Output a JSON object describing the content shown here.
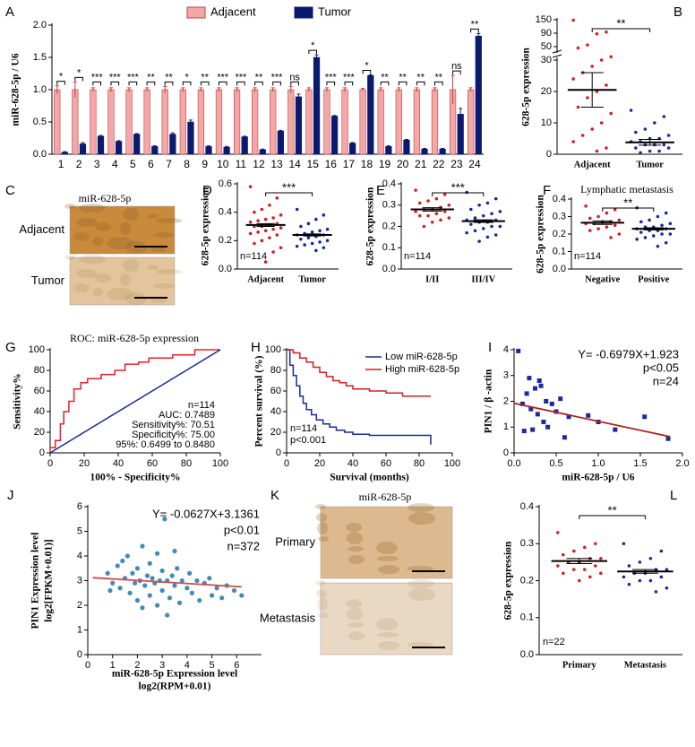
{
  "chart_data": [
    {
      "type": "bar",
      "panel": "A",
      "ylabel": "miR-628-5p / U6",
      "legend": "top",
      "categories": [
        "1",
        "2",
        "3",
        "4",
        "5",
        "6",
        "7",
        "8",
        "9",
        "10",
        "11",
        "12",
        "13",
        "14",
        "15",
        "16",
        "17",
        "18",
        "19",
        "20",
        "21",
        "22",
        "23",
        "24"
      ],
      "series": [
        {
          "name": "Adjacent",
          "color": "#f4a7a7",
          "values": [
            1,
            1,
            1,
            1,
            1,
            1,
            1,
            1,
            1,
            1,
            1,
            1,
            1,
            1,
            1,
            1,
            1,
            1,
            1,
            1,
            1,
            1,
            1,
            1
          ],
          "errors": [
            0.06,
            0.12,
            0.03,
            0.03,
            0.03,
            0.03,
            0.05,
            0.03,
            0.03,
            0.03,
            0.03,
            0.03,
            0.03,
            0.05,
            0.03,
            0.03,
            0.03,
            0.02,
            0.03,
            0.03,
            0.03,
            0.03,
            0.22,
            0.03
          ]
        },
        {
          "name": "Tumor",
          "color": "#0b1a6e",
          "values": [
            0.03,
            0.16,
            0.28,
            0.2,
            0.31,
            0.12,
            0.31,
            0.5,
            0.12,
            0.11,
            0.27,
            0.07,
            0.36,
            0.89,
            1.5,
            0.59,
            0.17,
            1.22,
            0.12,
            0.22,
            0.08,
            0.08,
            0.62,
            1.83
          ],
          "errors": [
            0.01,
            0.02,
            0.01,
            0.01,
            0.01,
            0.01,
            0.02,
            0.03,
            0.01,
            0.01,
            0.01,
            0.01,
            0.01,
            0.04,
            0.04,
            0.01,
            0.01,
            0.01,
            0.01,
            0.01,
            0.01,
            0.01,
            0.09,
            0.04
          ]
        }
      ],
      "significance": [
        "*",
        "*",
        "***",
        "***",
        "***",
        "**",
        "**",
        "*",
        "**",
        "***",
        "***",
        "**",
        "***",
        "ns",
        "*",
        "***",
        "***",
        "*",
        "**",
        "**",
        "**",
        "**",
        "ns",
        "**"
      ],
      "ylim": [
        0,
        2
      ],
      "yticks": [
        {
          "value": 0,
          "label": "0.0"
        },
        0.5,
        {
          "value": 1,
          "label": "1.0"
        },
        1.5,
        {
          "value": 2,
          "label": "2.0"
        }
      ]
    },
    {
      "type": "strip",
      "panel": "B",
      "ylabel": "628-5p expression",
      "categories": [
        "Adjacent",
        "Tumor"
      ],
      "groups": [
        {
          "color": "#d02020",
          "values": [
            148,
            95,
            88,
            55,
            48,
            35,
            30,
            28,
            26,
            24,
            22,
            20,
            18,
            15,
            13,
            10,
            8,
            6,
            4,
            2,
            1
          ],
          "mean": 20.5,
          "sem": 5.5
        },
        {
          "color": "#1a2a9a",
          "values": [
            14,
            12,
            10,
            8,
            7,
            6,
            5,
            5,
            4,
            4,
            3,
            3,
            3,
            2,
            2,
            1,
            1,
            0.5
          ],
          "mean": 3.8,
          "sem": 0.9
        }
      ],
      "significance": "**",
      "ylim": [
        0,
        150
      ],
      "y_break": 30,
      "yticks": [
        0,
        10,
        20,
        30,
        50,
        90,
        150
      ]
    },
    {
      "type": "image",
      "panel": "C",
      "title": "miR-628-5p",
      "rows": [
        {
          "label": "Adjacent",
          "color": "#c98a3c"
        },
        {
          "label": "Tumor",
          "color": "#e2c59c"
        }
      ]
    },
    {
      "type": "strip",
      "panel": "D",
      "ylabel": "628-5p expression",
      "categories": [
        "Adjacent",
        "Tumor"
      ],
      "annotations": [
        "n=114"
      ],
      "groups": [
        {
          "color": "#d02020",
          "values": [
            0.58,
            0.5,
            0.45,
            0.42,
            0.4,
            0.38,
            0.36,
            0.35,
            0.34,
            0.33,
            0.32,
            0.31,
            0.3,
            0.3,
            0.29,
            0.28,
            0.27,
            0.26,
            0.25,
            0.24,
            0.22,
            0.2,
            0.18,
            0.15,
            0.12,
            0.05
          ],
          "mean": 0.31,
          "sem": 0.01
        },
        {
          "color": "#1a2a9a",
          "values": [
            0.42,
            0.38,
            0.35,
            0.32,
            0.3,
            0.28,
            0.27,
            0.26,
            0.25,
            0.24,
            0.24,
            0.23,
            0.22,
            0.21,
            0.2,
            0.19,
            0.18,
            0.17,
            0.16,
            0.15,
            0.13
          ],
          "mean": 0.24,
          "sem": 0.007
        }
      ],
      "significance": "***",
      "ylim": [
        0,
        0.6
      ],
      "yticks": [
        {
          "value": 0,
          "label": "0.0"
        },
        0.2,
        0.4,
        0.6
      ]
    },
    {
      "type": "strip",
      "panel": "E",
      "ylabel": "628-5p expression",
      "categories": [
        "I/II",
        "III/IV"
      ],
      "annotations": [
        "n=114"
      ],
      "groups": [
        {
          "color": "#d02020",
          "values": [
            0.37,
            0.35,
            0.33,
            0.32,
            0.31,
            0.3,
            0.29,
            0.28,
            0.28,
            0.27,
            0.27,
            0.26,
            0.25,
            0.25,
            0.24,
            0.23,
            0.22,
            0.2
          ],
          "mean": 0.28,
          "sem": 0.008
        },
        {
          "color": "#1a2a9a",
          "values": [
            0.36,
            0.33,
            0.31,
            0.3,
            0.28,
            0.27,
            0.26,
            0.25,
            0.24,
            0.23,
            0.23,
            0.22,
            0.22,
            0.21,
            0.2,
            0.2,
            0.19,
            0.18,
            0.17,
            0.16,
            0.15,
            0.13
          ],
          "mean": 0.225,
          "sem": 0.006
        }
      ],
      "significance": "***",
      "ylim": [
        0,
        0.4
      ],
      "yticks": [
        {
          "value": 0,
          "label": "0.0"
        },
        0.1,
        0.2,
        0.3,
        0.4
      ]
    },
    {
      "type": "strip",
      "panel": "F",
      "title": "Lymphatic metastasis",
      "ylabel": "628-5p expression",
      "categories": [
        "Negative",
        "Positive"
      ],
      "annotations": [
        "n=114"
      ],
      "groups": [
        {
          "color": "#d02020",
          "values": [
            0.36,
            0.34,
            0.32,
            0.3,
            0.29,
            0.28,
            0.27,
            0.27,
            0.26,
            0.26,
            0.25,
            0.24,
            0.23,
            0.22,
            0.2,
            0.18
          ],
          "mean": 0.265,
          "sem": 0.01
        },
        {
          "color": "#1a2a9a",
          "values": [
            0.35,
            0.32,
            0.3,
            0.28,
            0.27,
            0.26,
            0.25,
            0.24,
            0.24,
            0.23,
            0.23,
            0.22,
            0.22,
            0.21,
            0.2,
            0.2,
            0.19,
            0.18,
            0.17,
            0.15,
            0.13
          ],
          "mean": 0.23,
          "sem": 0.006
        }
      ],
      "significance": "**",
      "ylim": [
        0,
        0.4
      ],
      "yticks": [
        {
          "value": 0,
          "label": "0.0"
        },
        0.1,
        0.2,
        0.3,
        0.4
      ]
    },
    {
      "type": "line",
      "panel": "G",
      "title": "ROC: miR-628-5p expression",
      "xlabel": "100% - Specificity%",
      "ylabel": "Sensitivity%",
      "annotations": [
        "n=114",
        "AUC: 0.7489",
        "Sensitivity%: 70.51",
        "Specificity%: 75.00",
        "95%: 0.6499 to 0.8480"
      ],
      "series": [
        {
          "color": "#e8202a",
          "x": [
            0,
            0,
            3,
            3,
            6,
            6,
            8,
            8,
            11,
            11,
            14,
            14,
            18,
            18,
            22,
            22,
            30,
            30,
            38,
            38,
            44,
            44,
            52,
            52,
            58,
            58,
            72,
            72,
            85,
            85,
            100
          ],
          "y": [
            0,
            5,
            5,
            12,
            12,
            28,
            28,
            40,
            40,
            50,
            50,
            62,
            62,
            68,
            68,
            72,
            72,
            76,
            76,
            80,
            80,
            86,
            86,
            88,
            88,
            92,
            92,
            95,
            95,
            100,
            100
          ]
        },
        {
          "color": "#1a2a9a",
          "x": [
            0,
            100
          ],
          "y": [
            0,
            100
          ]
        }
      ],
      "xlim": [
        0,
        100
      ],
      "xticks": [
        0,
        20,
        40,
        60,
        80,
        100
      ],
      "ylim": [
        0,
        100
      ],
      "yticks": [
        0,
        20,
        40,
        60,
        80,
        100
      ]
    },
    {
      "type": "line",
      "panel": "H",
      "step": true,
      "xlabel": "Survival (months)",
      "ylabel": "Percent survival (%)",
      "legend": "top-right",
      "annotations": [
        "n=114",
        "p<0.001"
      ],
      "series": [
        {
          "name": "Low miR-628-5p",
          "color": "#1a2a9a",
          "x": [
            0,
            2,
            4,
            6,
            8,
            10,
            12,
            15,
            18,
            22,
            26,
            30,
            35,
            40,
            50,
            60,
            70,
            80,
            87
          ],
          "y": [
            100,
            85,
            75,
            65,
            55,
            48,
            42,
            37,
            32,
            28,
            25,
            22,
            20,
            18,
            17,
            17,
            17,
            17,
            8
          ]
        },
        {
          "name": "High miR-628-5p",
          "color": "#d02020",
          "x": [
            0,
            4,
            8,
            12,
            16,
            20,
            24,
            28,
            32,
            36,
            40,
            50,
            60,
            70,
            80,
            87
          ],
          "y": [
            100,
            97,
            92,
            88,
            83,
            78,
            74,
            70,
            68,
            65,
            62,
            60,
            58,
            55,
            55,
            55
          ]
        }
      ],
      "xlim": [
        0,
        100
      ],
      "xticks": [
        0,
        20,
        40,
        60,
        80,
        100
      ],
      "ylim": [
        0,
        100
      ],
      "yticks": [
        0,
        20,
        40,
        60,
        80,
        100
      ]
    },
    {
      "type": "scatter",
      "panel": "I",
      "marker": "square",
      "color": "#1a2a9a",
      "xlabel": "miR-628-5p / U6",
      "ylabel": "PIN1 / β -actin",
      "annotations": [
        "Y= -0.6979X+1.923",
        "p<0.05",
        "n=24"
      ],
      "x": [
        0.05,
        0.1,
        0.12,
        0.15,
        0.18,
        0.2,
        0.22,
        0.25,
        0.28,
        0.3,
        0.32,
        0.35,
        0.38,
        0.4,
        0.45,
        0.5,
        0.55,
        0.6,
        0.65,
        0.88,
        1.0,
        1.2,
        1.55,
        1.83
      ],
      "y": [
        3.95,
        1.9,
        0.85,
        2.3,
        2.9,
        1.7,
        0.9,
        2.5,
        1.5,
        2.8,
        2.6,
        1.2,
        2.0,
        1.0,
        1.9,
        1.6,
        2.1,
        0.6,
        1.4,
        1.45,
        1.2,
        0.9,
        1.4,
        0.55
      ],
      "fit": {
        "color": "#b02020",
        "x": [
          0,
          1.85
        ],
        "y": [
          1.923,
          0.632
        ]
      },
      "xlim": [
        0,
        2
      ],
      "xticks": [
        {
          "value": 0,
          "label": "0.0"
        },
        0.5,
        {
          "value": 1,
          "label": "1.0"
        },
        1.5,
        {
          "value": 2,
          "label": "2.0"
        }
      ],
      "ylim": [
        0,
        4
      ],
      "yticks": [
        0,
        1,
        2,
        3,
        4
      ]
    },
    {
      "type": "scatter",
      "panel": "J",
      "marker": "circle",
      "color": "#2277aa",
      "xlabel": [
        "miR-628-5p Expression level",
        "log2(RPM+0.01)"
      ],
      "ylabel": [
        "PIN1 Expression level",
        "log2[FPKM+0.01)]"
      ],
      "annotations": [
        "Y= -0.0627X+3.1361",
        "p<0.01",
        "n=372"
      ],
      "x": [
        0.8,
        1.0,
        1.2,
        1.3,
        1.5,
        1.6,
        1.7,
        1.8,
        1.9,
        2.0,
        2.0,
        2.1,
        2.2,
        2.3,
        2.4,
        2.5,
        2.5,
        2.6,
        2.7,
        2.8,
        2.9,
        3.0,
        3.0,
        3.1,
        3.2,
        3.3,
        3.4,
        3.5,
        3.6,
        3.7,
        3.8,
        4.0,
        4.1,
        4.2,
        4.4,
        4.5,
        4.7,
        4.9,
        5.0,
        5.2,
        5.4,
        5.6,
        5.9,
        6.2,
        1.4,
        2.2,
        2.8,
        3.5,
        0.9,
        3.2
      ],
      "y": [
        3.3,
        2.9,
        3.6,
        2.7,
        3.1,
        4.0,
        2.5,
        3.3,
        2.9,
        3.5,
        2.2,
        3.0,
        4.4,
        2.8,
        3.2,
        3.7,
        2.4,
        3.1,
        2.9,
        4.1,
        3.0,
        2.6,
        3.4,
        5.5,
        3.0,
        2.3,
        3.2,
        2.8,
        3.5,
        2.1,
        3.0,
        2.7,
        3.3,
        2.5,
        3.0,
        2.2,
        2.9,
        3.1,
        2.4,
        2.7,
        2.3,
        2.8,
        2.6,
        2.4,
        3.8,
        1.9,
        2.0,
        4.2,
        2.6,
        1.6
      ],
      "fit": {
        "color": "#d04a4a",
        "x": [
          0.2,
          6.2
        ],
        "y": [
          3.12,
          2.75
        ]
      },
      "xlim": [
        0,
        7
      ],
      "xticks": [
        0,
        1,
        2,
        3,
        4,
        5,
        6
      ],
      "ylim": [
        0,
        6
      ],
      "yticks": [
        0,
        1,
        2,
        3,
        4,
        5,
        6
      ]
    },
    {
      "type": "image",
      "panel": "K",
      "title": "miR-628-5p",
      "rows": [
        {
          "label": "Primary",
          "color": "#dcb98e"
        },
        {
          "label": "Metastasis",
          "color": "#e9d8c4"
        }
      ]
    },
    {
      "type": "strip",
      "panel": "L",
      "ylabel": "628-5p expression",
      "categories": [
        "Primary",
        "Metastasis"
      ],
      "annotations": [
        "n=22"
      ],
      "groups": [
        {
          "color": "#d02020",
          "values": [
            0.33,
            0.3,
            0.29,
            0.28,
            0.27,
            0.26,
            0.26,
            0.25,
            0.25,
            0.24,
            0.24,
            0.23,
            0.23,
            0.22,
            0.22,
            0.21,
            0.2
          ],
          "mean": 0.253,
          "sem": 0.007
        },
        {
          "color": "#1a2a9a",
          "values": [
            0.3,
            0.28,
            0.26,
            0.25,
            0.24,
            0.23,
            0.23,
            0.22,
            0.22,
            0.21,
            0.21,
            0.2,
            0.2,
            0.19,
            0.18,
            0.17
          ],
          "mean": 0.225,
          "sem": 0.005
        }
      ],
      "significance": "**",
      "ylim": [
        0,
        0.4
      ],
      "yticks": [
        {
          "value": 0,
          "label": "0.0"
        },
        0.1,
        0.2,
        0.3,
        0.4
      ]
    }
  ]
}
